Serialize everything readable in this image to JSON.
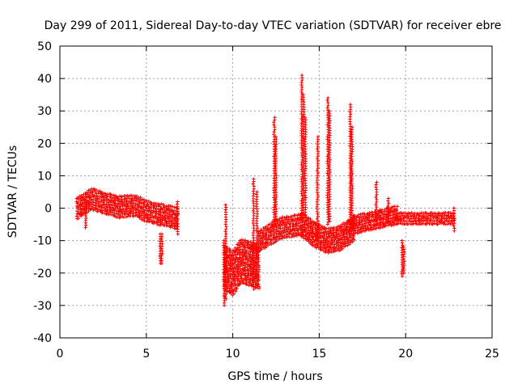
{
  "chart_data": {
    "type": "scatter",
    "title": "Day 299 of 2011, Sidereal Day-to-day VTEC variation (SDTVAR) for receiver ebre",
    "xlabel": "GPS time / hours",
    "ylabel": "SDTVAR / TECUs",
    "xlim": [
      0,
      25
    ],
    "ylim": [
      -40,
      50
    ],
    "xticks": [
      "0",
      "5",
      "10",
      "15",
      "20",
      "25"
    ],
    "yticks": [
      "-40",
      "-30",
      "-20",
      "-10",
      "0",
      "10",
      "20",
      "30",
      "40",
      "50"
    ],
    "grid": true,
    "marker": "plus",
    "color": "#ff0000",
    "series": [
      {
        "name": "SDTVAR",
        "bands": [
          {
            "t": [
              1.0,
              6.8
            ],
            "center": [
              0.0,
              3.0,
              1.5,
              0.5,
              1.0,
              -1.0,
              -2.0,
              -3.0
            ],
            "halfwidth": 3.5
          },
          {
            "t": [
              9.5,
              11.5
            ],
            "center": [
              -18.0,
              -20.0,
              -16.0,
              -17.0,
              -18.0
            ],
            "halfwidth": 7.0
          },
          {
            "t": [
              11.5,
              14.0
            ],
            "center": [
              -10.0,
              -8.0,
              -6.0,
              -5.5,
              -5.0
            ],
            "halfwidth": 3.5
          },
          {
            "t": [
              14.0,
              17.0
            ],
            "center": [
              -5.0,
              -8.0,
              -10.0,
              -9.0,
              -6.0
            ],
            "halfwidth": 4.0
          },
          {
            "t": [
              17.0,
              19.5
            ],
            "center": [
              -5.0,
              -4.0,
              -3.0,
              -2.0
            ],
            "halfwidth": 3.0
          },
          {
            "t": [
              19.5,
              22.8
            ],
            "center": [
              -3.0,
              -3.0,
              -3.0,
              -3.0
            ],
            "halfwidth": 2.0
          }
        ],
        "spikes": [
          {
            "t": 1.5,
            "ymin": -6,
            "ymax": 2
          },
          {
            "t": 6.8,
            "ymin": -8,
            "ymax": 2
          },
          {
            "t": 5.8,
            "ymin": -17,
            "ymax": -8
          },
          {
            "t": 5.9,
            "ymin": -17,
            "ymax": -8
          },
          {
            "t": 9.5,
            "ymin": -30,
            "ymax": -10
          },
          {
            "t": 9.6,
            "ymin": -28,
            "ymax": 1
          },
          {
            "t": 11.2,
            "ymin": -25,
            "ymax": 9
          },
          {
            "t": 11.4,
            "ymin": -24,
            "ymax": 5
          },
          {
            "t": 12.4,
            "ymin": -5,
            "ymax": 28
          },
          {
            "t": 12.5,
            "ymin": -4,
            "ymax": 22
          },
          {
            "t": 14.0,
            "ymin": -3,
            "ymax": 41
          },
          {
            "t": 14.1,
            "ymin": -2,
            "ymax": 35
          },
          {
            "t": 14.2,
            "ymin": -2,
            "ymax": 28
          },
          {
            "t": 14.9,
            "ymin": -10,
            "ymax": 22
          },
          {
            "t": 15.5,
            "ymin": -5,
            "ymax": 34
          },
          {
            "t": 15.6,
            "ymin": -4,
            "ymax": 30
          },
          {
            "t": 16.8,
            "ymin": -8,
            "ymax": 32
          },
          {
            "t": 16.9,
            "ymin": -6,
            "ymax": 25
          },
          {
            "t": 18.3,
            "ymin": -5,
            "ymax": 8
          },
          {
            "t": 19.0,
            "ymin": -4,
            "ymax": 3
          },
          {
            "t": 19.8,
            "ymin": -21,
            "ymax": -10
          },
          {
            "t": 19.9,
            "ymin": -20,
            "ymax": -12
          },
          {
            "t": 22.8,
            "ymin": -7,
            "ymax": 0
          }
        ]
      }
    ]
  }
}
